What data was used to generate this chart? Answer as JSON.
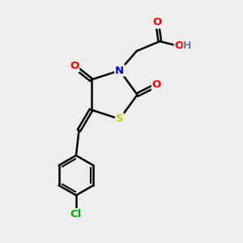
{
  "background_color": "#eeeeee",
  "atom_colors": {
    "O": "#ff0000",
    "N": "#0000ff",
    "S": "#cccc00",
    "Cl": "#00aa00",
    "H": "#708090",
    "C": "#000000"
  },
  "bond_color": "#000000",
  "bond_width": 1.8
}
